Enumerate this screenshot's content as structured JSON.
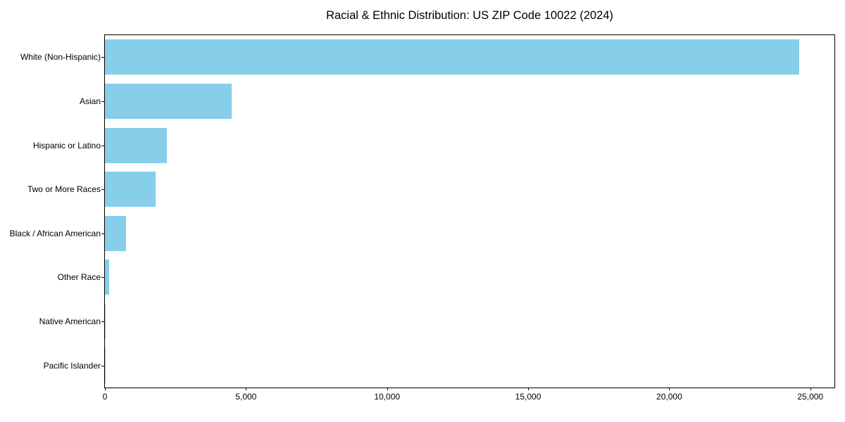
{
  "chart_data": {
    "type": "bar",
    "orientation": "horizontal",
    "title": "Racial & Ethnic Distribution: US ZIP Code 10022 (2024)",
    "categories": [
      "White (Non-Hispanic)",
      "Asian",
      "Hispanic or Latino",
      "Two or More Races",
      "Black / African American",
      "Other Race",
      "Native American",
      "Pacific Islander"
    ],
    "values": [
      24600,
      4500,
      2200,
      1800,
      750,
      150,
      20,
      10
    ],
    "xlabel": "",
    "ylabel": "",
    "xlim": [
      0,
      25830
    ],
    "x_ticks": [
      {
        "value": 0,
        "label": "0"
      },
      {
        "value": 5000,
        "label": "5,000"
      },
      {
        "value": 10000,
        "label": "10,000"
      },
      {
        "value": 15000,
        "label": "15,000"
      },
      {
        "value": 20000,
        "label": "20,000"
      },
      {
        "value": 25000,
        "label": "25,000"
      }
    ],
    "bar_color": "#87CEEB",
    "background_color": "#FFFFFF",
    "axis_color": "#000000",
    "grid": false,
    "legend": null
  }
}
